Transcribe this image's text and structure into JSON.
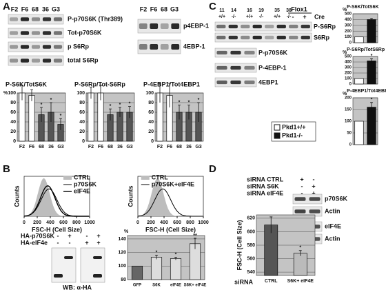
{
  "panel_a": {
    "label": "A",
    "blot_lanes_left": [
      "F2",
      "F6",
      "68",
      "36",
      "G3"
    ],
    "blots_left": [
      "P-p70S6K (Thr389)",
      "Tot-p70S6K",
      "p S6Rp",
      "total S6Rp"
    ],
    "blot_lanes_right": [
      "F2",
      "F6",
      "68",
      "G3"
    ],
    "blots_right": [
      "p4EBP-1",
      "4EBP-1"
    ],
    "charts": [
      {
        "type": "bar",
        "title": "P-S6K/TotS6K",
        "ylabel": "%",
        "categories": [
          "F2",
          "F6",
          "68",
          "36",
          "G3"
        ],
        "values": [
          100,
          95,
          55,
          60,
          35
        ],
        "errors": [
          15,
          12,
          15,
          20,
          12
        ],
        "annotations": [
          null,
          null,
          "*",
          "*",
          "*"
        ],
        "colors": [
          "#ffffff",
          "#ffffff",
          "#555555",
          "#555555",
          "#555555"
        ],
        "ylim": [
          0,
          100
        ],
        "yticks": [
          0,
          20,
          40,
          60,
          80,
          100
        ],
        "grid": true
      },
      {
        "type": "bar",
        "title": "P-S6Rp/Tot-S6Rp",
        "categories": [
          "F2",
          "F6",
          "68",
          "36",
          "G3"
        ],
        "values": [
          100,
          100,
          55,
          60,
          60
        ],
        "errors": [
          12,
          15,
          12,
          10,
          12
        ],
        "annotations": [
          null,
          null,
          "*",
          "*",
          "*"
        ],
        "colors": [
          "#ffffff",
          "#ffffff",
          "#555555",
          "#555555",
          "#555555"
        ],
        "ylim": [
          0,
          100
        ],
        "yticks": [
          0,
          20,
          40,
          60,
          80,
          100
        ],
        "grid": true
      },
      {
        "type": "bar",
        "title": "P-4EBP1/Tot4EBP1",
        "categories": [
          "F2",
          "F6",
          "68",
          "36",
          "G3"
        ],
        "values": [
          100,
          95,
          60,
          60,
          60
        ],
        "errors": [
          20,
          25,
          15,
          15,
          20
        ],
        "annotations": [
          null,
          null,
          "*",
          "*",
          "*"
        ],
        "colors": [
          "#ffffff",
          "#ffffff",
          "#555555",
          "#555555",
          "#555555"
        ],
        "ylim": [
          0,
          100
        ],
        "yticks": [
          0,
          20,
          40,
          60,
          80,
          100
        ],
        "grid": true
      }
    ]
  },
  "panel_b": {
    "label": "B",
    "histograms": [
      {
        "ylabel": "Counts",
        "xlabel": "FSC-H (Cell Size)",
        "xlim": [
          0,
          1000
        ],
        "xticks": [
          0,
          200,
          400,
          600,
          800,
          1000
        ],
        "legend": [
          "CTRL",
          "p70S6K",
          "eIF4E"
        ]
      },
      {
        "ylabel": "Counts",
        "xlabel": "FSC-H (Cell Size)",
        "xlim": [
          0,
          1000
        ],
        "xticks": [
          0,
          200,
          400,
          600,
          800,
          1000
        ],
        "legend": [
          "CTRL",
          "p70S6K+eIF4E"
        ]
      }
    ],
    "blot": {
      "rows": [
        {
          "name": "HA-p70S6K",
          "signs": [
            "-",
            "+",
            "-",
            "+"
          ]
        },
        {
          "name": "HA-eIF4e",
          "signs": [
            "-",
            "-",
            "+",
            "+"
          ]
        }
      ],
      "caption": "WB: α-HA"
    },
    "chart": {
      "type": "bar",
      "ylabel": "%",
      "categories": [
        "GFP",
        "S6K",
        "eIF4E",
        "S6K+ eIF4E"
      ],
      "values": [
        100,
        113,
        111,
        133
      ],
      "errors": [
        0,
        3,
        2,
        8
      ],
      "annotations": [
        null,
        "*",
        "*",
        "**"
      ],
      "colors": [
        "#666666",
        "#dddddd",
        "#dddddd",
        "#dddddd"
      ],
      "ylim": [
        80,
        145
      ],
      "yticks": [
        80,
        100,
        120,
        140
      ],
      "grid": true
    }
  },
  "panel_c": {
    "label": "C",
    "lanes": [
      {
        "top": "11",
        "bottom": "+/+"
      },
      {
        "top": "14",
        "bottom": "-/-"
      },
      {
        "top": "16",
        "bottom": "+/+"
      },
      {
        "top": "19",
        "bottom": "-/-"
      },
      {
        "top": "35",
        "bottom": "+/+"
      },
      {
        "top": "38",
        "bottom": "-/-"
      }
    ],
    "flox": {
      "name": "Flox1",
      "signs": [
        "-",
        "+"
      ],
      "treatment": "Cre"
    },
    "blots": [
      "P-S6Rp",
      "S6Rp",
      "P-p70S6K",
      "P-4EBP-1",
      "4EBP1"
    ],
    "legend": [
      {
        "name": "Pkd1+/+",
        "color": "#ffffff"
      },
      {
        "name": "Pkd1-/-",
        "color": "#111111"
      }
    ],
    "charts": [
      {
        "type": "bar",
        "title": "P-S6K/TotS6K",
        "ylabel": "%",
        "categories": [
          null,
          null
        ],
        "values": [
          100,
          400
        ],
        "errors": [
          0,
          20
        ],
        "annotations": [
          null,
          null
        ],
        "colors": [
          "#ffffff",
          "#111111"
        ],
        "ylim": [
          0,
          500
        ],
        "yticks": [
          0,
          100,
          200,
          300,
          400,
          500
        ],
        "grid": true
      },
      {
        "type": "bar",
        "title": "P-S6Rp/TotS6Rp",
        "ylabel": "%",
        "categories": [
          null,
          null
        ],
        "values": [
          100,
          420
        ],
        "errors": [
          0,
          40
        ],
        "annotations": [
          null,
          "*"
        ],
        "colors": [
          "#ffffff",
          "#111111"
        ],
        "ylim": [
          0,
          500
        ],
        "yticks": [
          0,
          100,
          200,
          300,
          400,
          500
        ],
        "grid": true
      },
      {
        "type": "bar",
        "title": "P-4EBP1/Tot4EBP1",
        "ylabel": "%",
        "categories": [
          null,
          null
        ],
        "values": [
          100,
          160
        ],
        "errors": [
          0,
          20
        ],
        "annotations": [
          null,
          "*"
        ],
        "colors": [
          "#ffffff",
          "#111111"
        ],
        "ylim": [
          0,
          200
        ],
        "yticks": [
          0,
          50,
          100,
          150,
          200
        ],
        "grid": true
      }
    ]
  },
  "panel_d": {
    "label": "D",
    "rows": [
      {
        "name": "siRNA CTRL",
        "signs": [
          "+",
          "-"
        ]
      },
      {
        "name": "siRNA S6K",
        "signs": [
          "-",
          "+"
        ]
      },
      {
        "name": "siRNA eIF4E",
        "signs": [
          "-",
          "+"
        ]
      }
    ],
    "blots": [
      "p70S6K",
      "Actin",
      "eIF4E",
      "Actin"
    ],
    "chart": {
      "type": "bar",
      "ylabel": "FSC-H (Cell Size)",
      "xlabel": "siRNA",
      "categories": [
        "CTRL",
        "S6K+ eIF4E"
      ],
      "values": [
        610,
        568
      ],
      "errors": [
        12,
        4
      ],
      "annotations": [
        null,
        "*"
      ],
      "colors": [
        "#555555",
        "#bbbbbb"
      ],
      "ylim": [
        535,
        625
      ],
      "yticks": [
        540,
        560,
        580,
        600,
        620
      ],
      "grid": true
    }
  }
}
